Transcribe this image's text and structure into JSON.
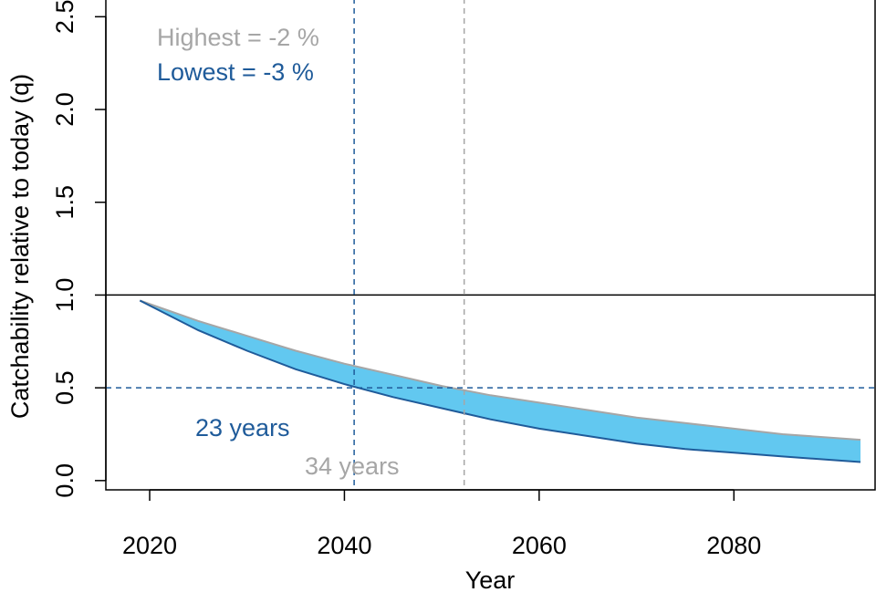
{
  "chart_data": {
    "type": "area",
    "xlabel": "Year",
    "ylabel": "Catchability relative to today (q)",
    "xlim": [
      2015.5,
      2094.5
    ],
    "ylim": [
      -0.05,
      2.6
    ],
    "xticks": [
      2020,
      2040,
      2060,
      2080
    ],
    "yticks": [
      0.0,
      0.5,
      1.0,
      1.5,
      2.0,
      2.5
    ],
    "ytick_labels": [
      "0.0",
      "0.5",
      "1.0",
      "1.5",
      "2.0",
      "2.5"
    ],
    "reference_lines": {
      "horizontal_solid": 1.0,
      "horizontal_dashed": 0.5,
      "vertical_lowest": 2041,
      "vertical_highest": 2052.3
    },
    "series": [
      {
        "name": "Highest",
        "color": "#a6a6a6",
        "x": [
          2019,
          2025,
          2030,
          2035,
          2040,
          2045,
          2050,
          2055,
          2060,
          2065,
          2070,
          2075,
          2080,
          2085,
          2093
        ],
        "y": [
          0.97,
          0.86,
          0.78,
          0.7,
          0.63,
          0.57,
          0.51,
          0.46,
          0.42,
          0.38,
          0.34,
          0.31,
          0.28,
          0.25,
          0.22
        ]
      },
      {
        "name": "Lowest",
        "color": "#1f5b9a",
        "x": [
          2019,
          2025,
          2030,
          2035,
          2040,
          2045,
          2050,
          2055,
          2060,
          2065,
          2070,
          2075,
          2080,
          2085,
          2093
        ],
        "y": [
          0.97,
          0.81,
          0.7,
          0.6,
          0.52,
          0.45,
          0.39,
          0.33,
          0.28,
          0.24,
          0.2,
          0.17,
          0.15,
          0.13,
          0.1
        ]
      }
    ],
    "band_color": "#62c8f0",
    "annotations": {
      "highest_label": "Highest =  -2 %",
      "lowest_label": "Lowest =  -3 %",
      "lowest_years": "23 years",
      "highest_years": "34 years"
    },
    "colors": {
      "lowest": "#1f5b9a",
      "highest": "#a6a6a6",
      "axis": "#000000"
    }
  }
}
